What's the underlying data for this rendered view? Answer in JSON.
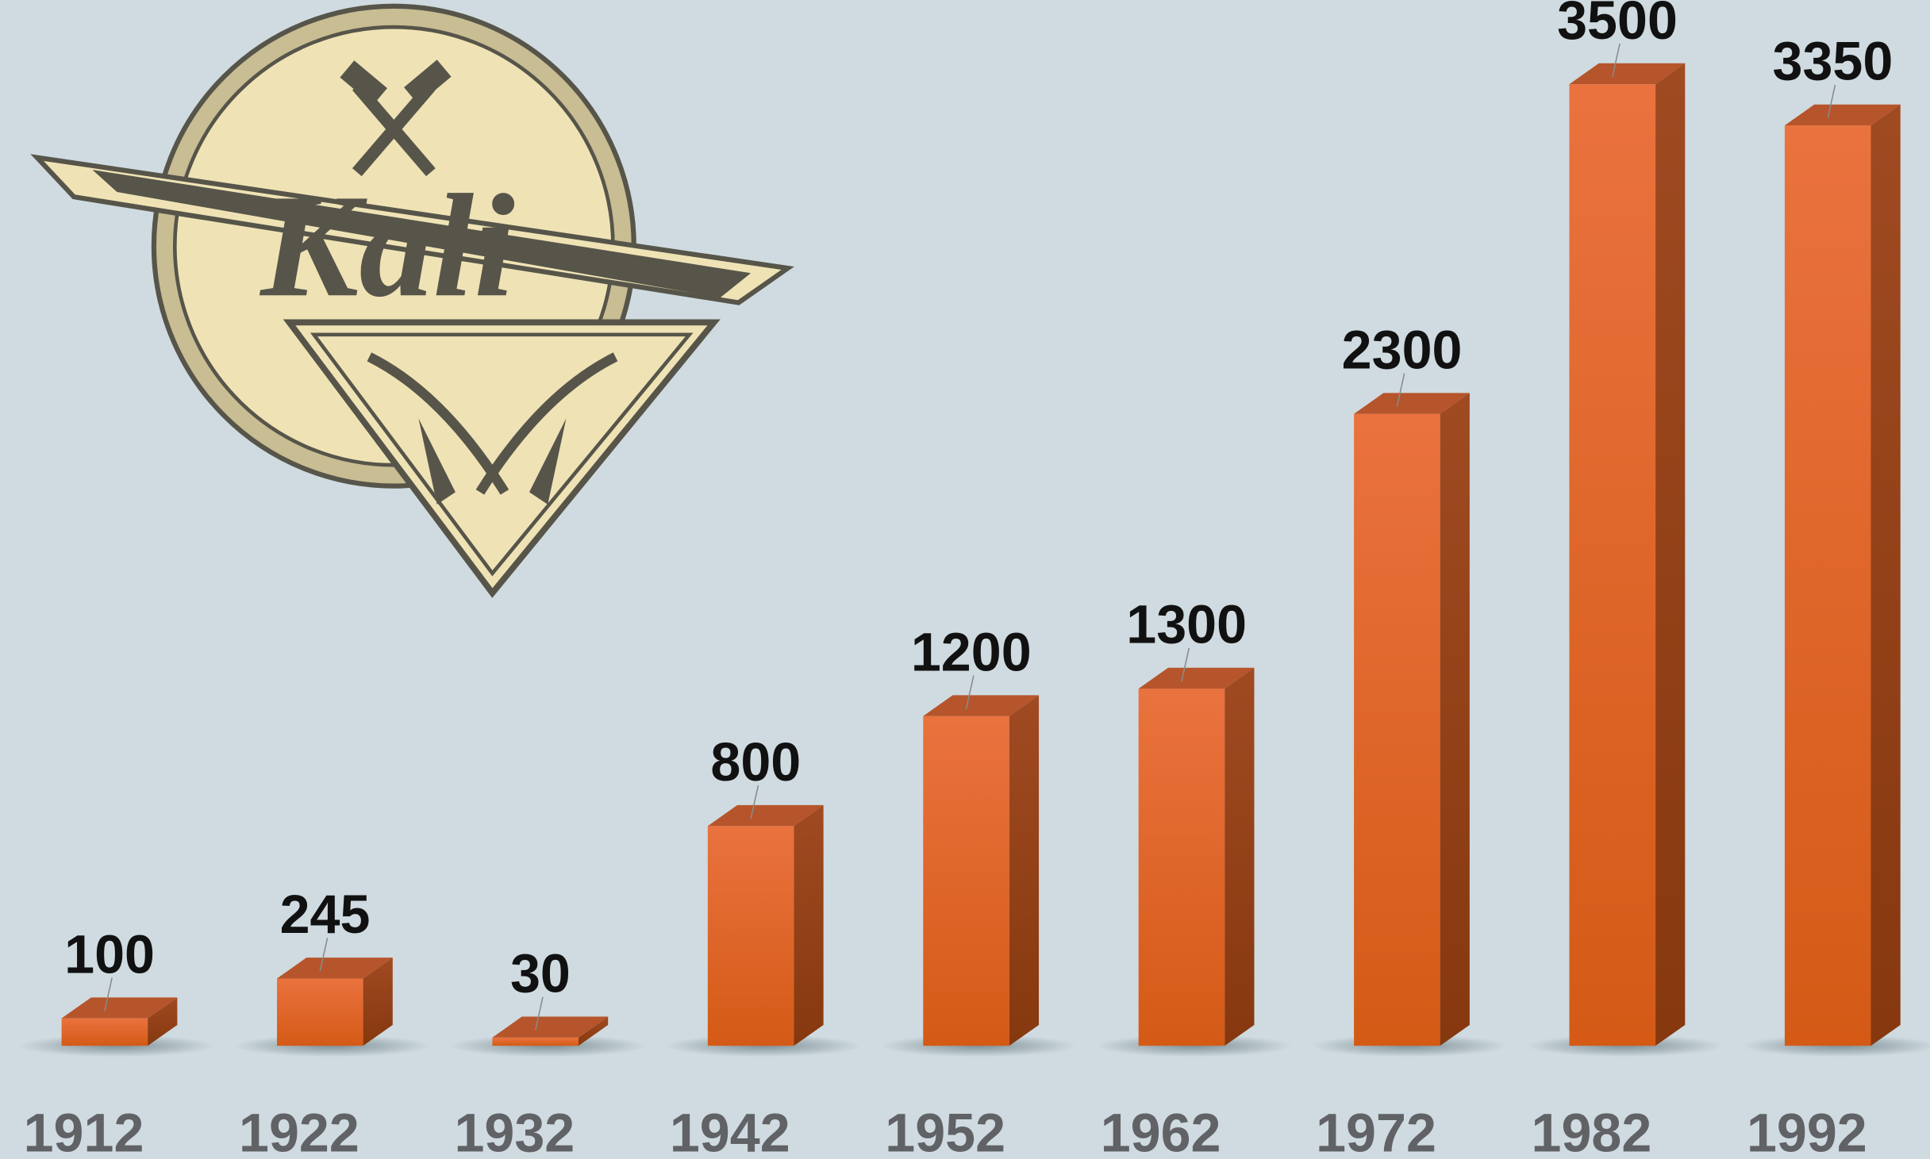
{
  "chart_data": {
    "type": "bar",
    "logo_text": "Kali",
    "categories": [
      "1912",
      "1922",
      "1932",
      "1942",
      "1952",
      "1962",
      "1972",
      "1982",
      "1992"
    ],
    "values": [
      100,
      245,
      30,
      800,
      1200,
      1300,
      2300,
      3500,
      3350
    ],
    "color": "#e06428"
  }
}
